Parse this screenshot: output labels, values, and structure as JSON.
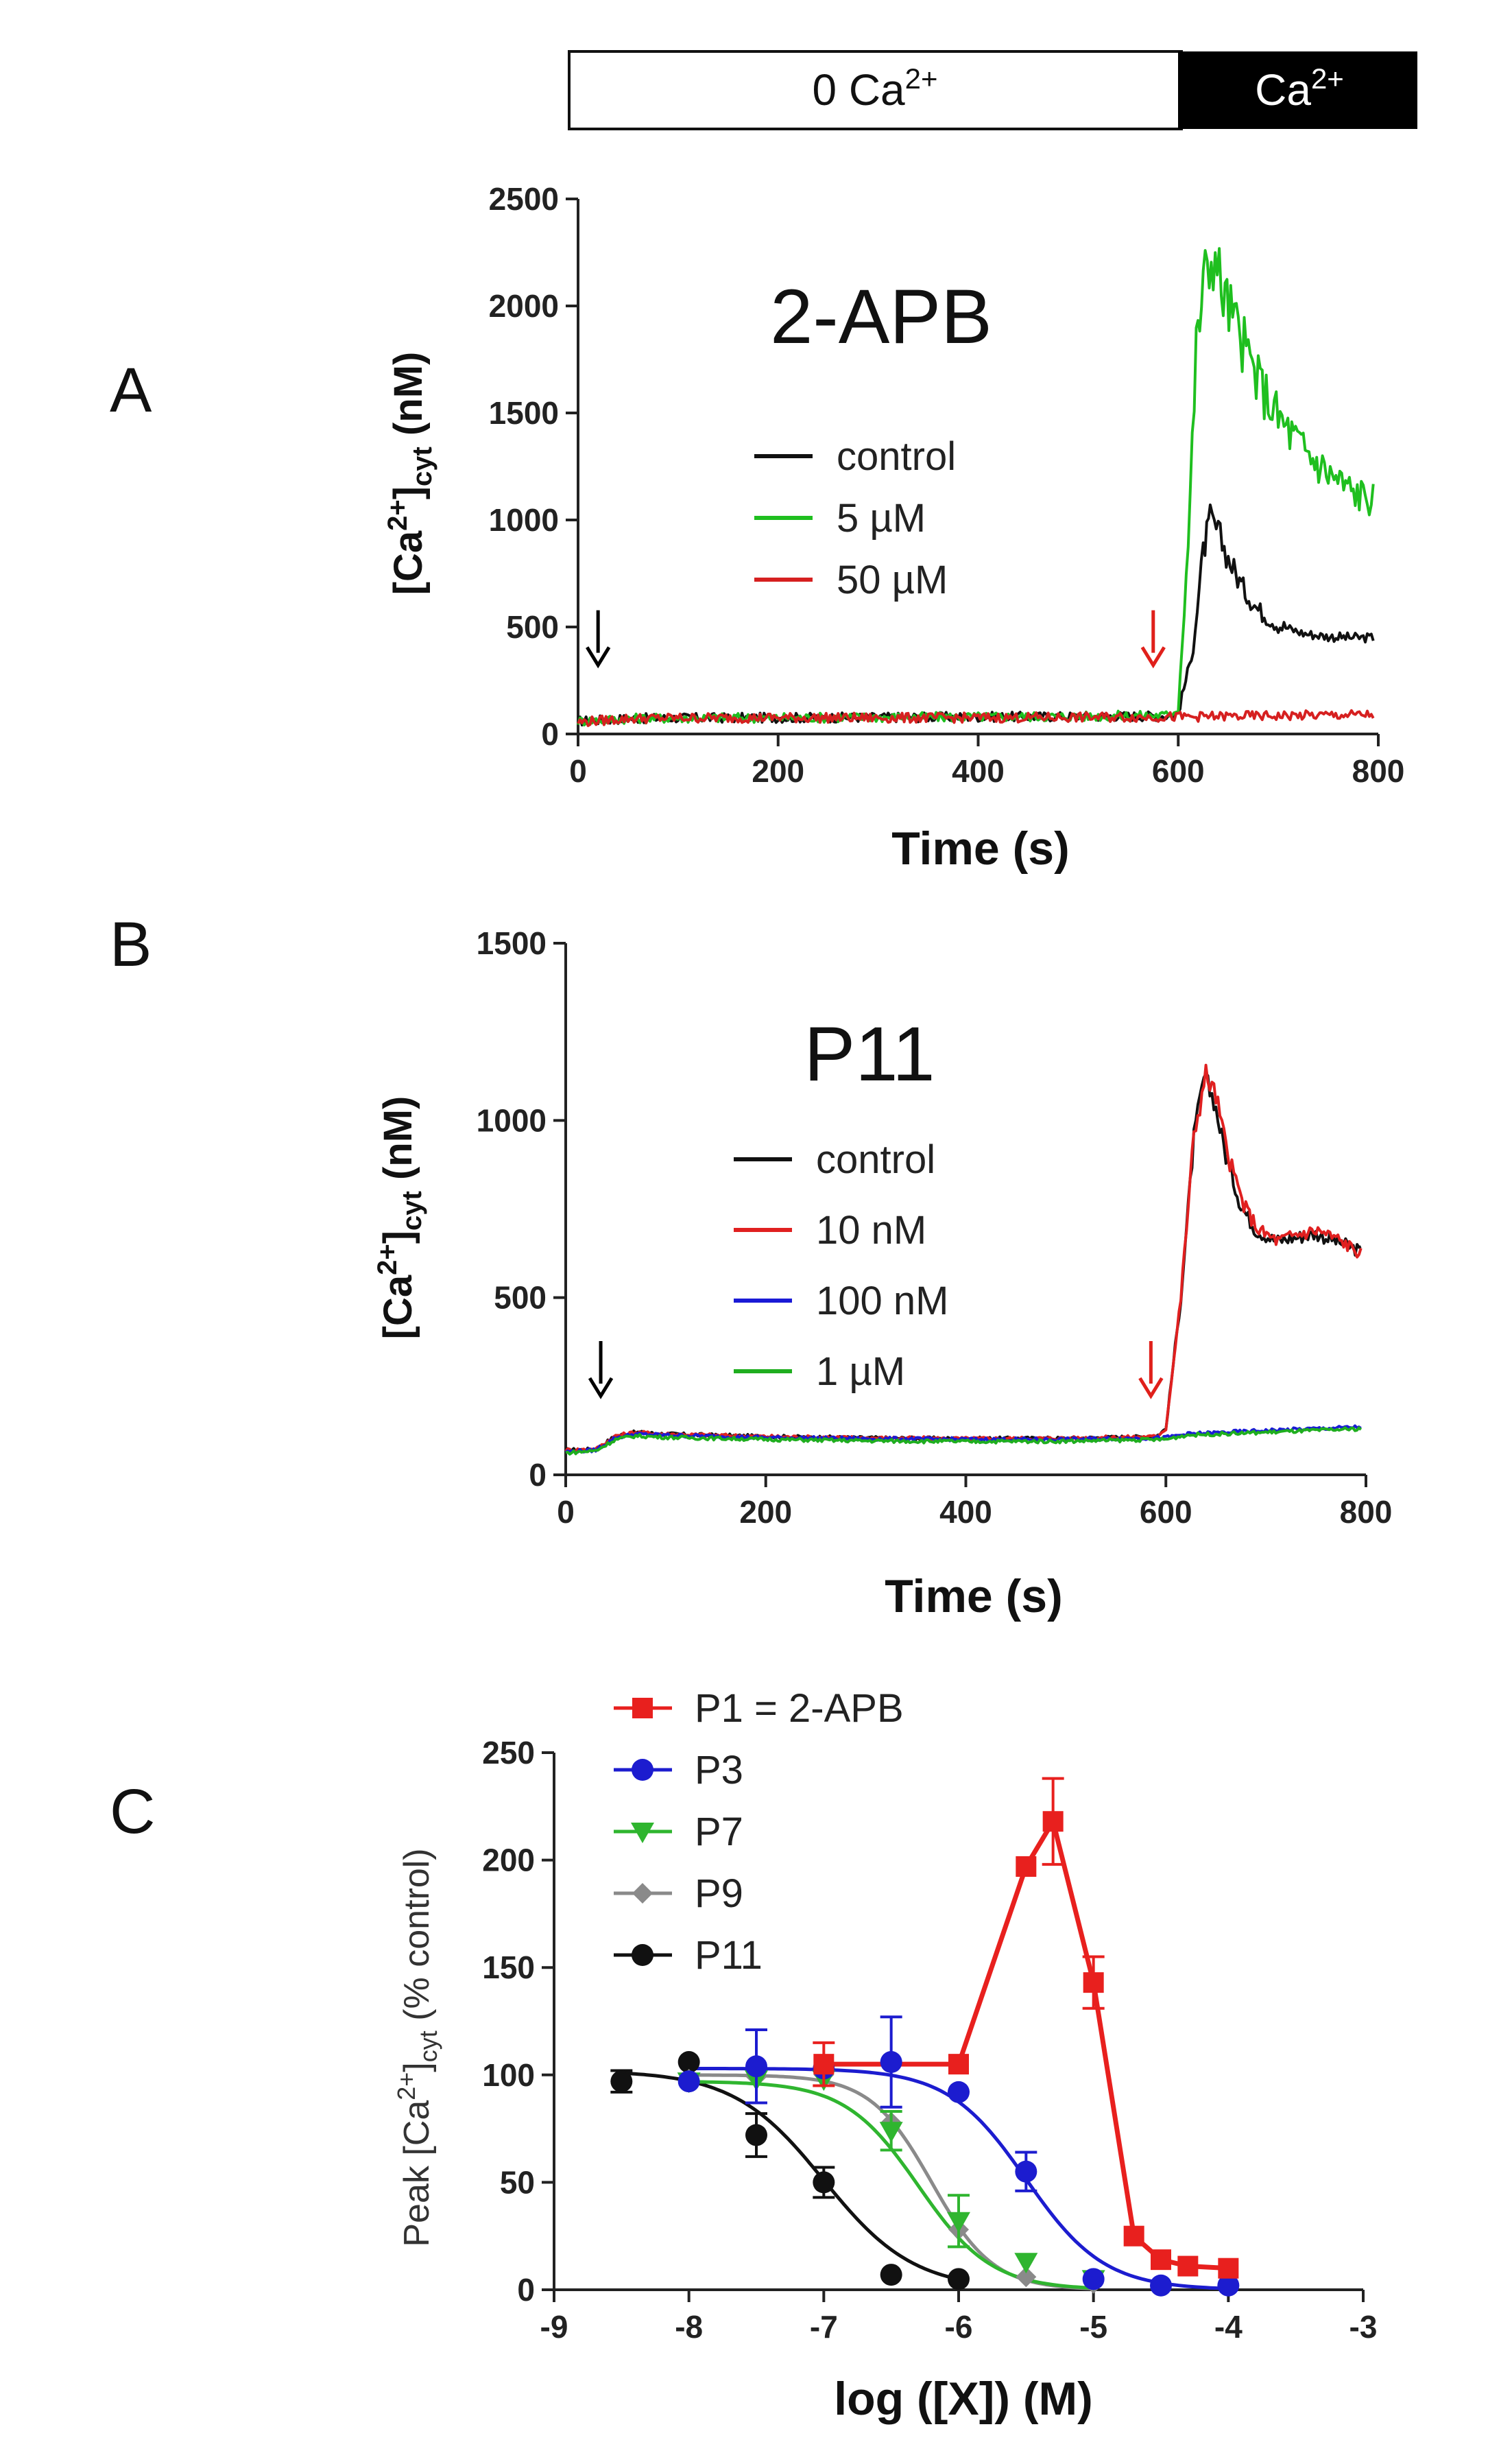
{
  "condition_bar": {
    "left_label": "0 Ca",
    "left_sup": "2+",
    "right_label": "Ca",
    "right_sup": "2+"
  },
  "chart_data": [
    {
      "panel": "A",
      "type": "line",
      "title": "2-APB",
      "xlabel": "Time (s)",
      "ylabel": "[Ca2+]cyt (nM)",
      "ylabel_parts": {
        "main": "[Ca",
        "sup": "2+",
        "close": "]",
        "sub": "cyt",
        "unit": " (nM)"
      },
      "xlim": [
        0,
        800
      ],
      "ylim": [
        0,
        2500
      ],
      "xticks": [
        0,
        200,
        400,
        600,
        800
      ],
      "yticks": [
        0,
        500,
        1000,
        1500,
        2000,
        2500
      ],
      "annotations": [
        {
          "type": "arrow",
          "color": "#000000",
          "x": 20,
          "y": 450
        },
        {
          "type": "arrow",
          "color": "#e0201b",
          "x": 575,
          "y": 450
        }
      ],
      "series": [
        {
          "name": "control",
          "color": "#111111",
          "points": [
            [
              0,
              60
            ],
            [
              50,
              72
            ],
            [
              100,
              75
            ],
            [
              200,
              76
            ],
            [
              300,
              78
            ],
            [
              400,
              80
            ],
            [
              500,
              82
            ],
            [
              590,
              85
            ],
            [
              600,
              100
            ],
            [
              615,
              400
            ],
            [
              625,
              850
            ],
            [
              632,
              1000
            ],
            [
              640,
              940
            ],
            [
              650,
              820
            ],
            [
              665,
              680
            ],
            [
              680,
              580
            ],
            [
              700,
              510
            ],
            [
              725,
              470
            ],
            [
              750,
              455
            ],
            [
              775,
              450
            ],
            [
              795,
              450
            ]
          ]
        },
        {
          "name": "5 µM",
          "color": "#1fbf1f",
          "points": [
            [
              0,
              60
            ],
            [
              50,
              72
            ],
            [
              100,
              75
            ],
            [
              200,
              76
            ],
            [
              300,
              78
            ],
            [
              400,
              80
            ],
            [
              500,
              82
            ],
            [
              590,
              88
            ],
            [
              600,
              120
            ],
            [
              610,
              900
            ],
            [
              618,
              1800
            ],
            [
              625,
              2100
            ],
            [
              635,
              2250
            ],
            [
              645,
              2060
            ],
            [
              660,
              1880
            ],
            [
              680,
              1650
            ],
            [
              700,
              1480
            ],
            [
              725,
              1330
            ],
            [
              750,
              1220
            ],
            [
              775,
              1130
            ],
            [
              795,
              1100
            ]
          ]
        },
        {
          "name": "50 µM",
          "color": "#d62020",
          "points": [
            [
              0,
              55
            ],
            [
              50,
              72
            ],
            [
              100,
              75
            ],
            [
              200,
              76
            ],
            [
              300,
              75
            ],
            [
              400,
              76
            ],
            [
              500,
              78
            ],
            [
              600,
              80
            ],
            [
              700,
              85
            ],
            [
              795,
              90
            ]
          ]
        }
      ]
    },
    {
      "panel": "B",
      "type": "line",
      "title": "P11",
      "xlabel": "Time (s)",
      "ylabel": "[Ca2+]cyt (nM)",
      "ylabel_parts": {
        "main": "[Ca",
        "sup": "2+",
        "close": "]",
        "sub": "cyt",
        "unit": " (nM)"
      },
      "xlim": [
        0,
        800
      ],
      "ylim": [
        0,
        1500
      ],
      "xticks": [
        0,
        200,
        400,
        600,
        800
      ],
      "yticks": [
        0,
        500,
        1000,
        1500
      ],
      "annotations": [
        {
          "type": "arrow",
          "color": "#000000",
          "x": 35,
          "y": 300
        },
        {
          "type": "arrow",
          "color": "#e0201b",
          "x": 585,
          "y": 300
        }
      ],
      "series": [
        {
          "name": "control",
          "color": "#111111",
          "points": [
            [
              0,
              70
            ],
            [
              30,
              72
            ],
            [
              50,
              110
            ],
            [
              70,
              120
            ],
            [
              100,
              115
            ],
            [
              200,
              108
            ],
            [
              300,
              104
            ],
            [
              400,
              102
            ],
            [
              500,
              103
            ],
            [
              590,
              108
            ],
            [
              600,
              130
            ],
            [
              615,
              500
            ],
            [
              628,
              950
            ],
            [
              638,
              1120
            ],
            [
              648,
              1060
            ],
            [
              660,
              900
            ],
            [
              675,
              760
            ],
            [
              690,
              690
            ],
            [
              710,
              660
            ],
            [
              730,
              670
            ],
            [
              750,
              680
            ],
            [
              770,
              660
            ],
            [
              795,
              630
            ]
          ]
        },
        {
          "name": "10 nM",
          "color": "#e02020",
          "points": [
            [
              0,
              70
            ],
            [
              30,
              72
            ],
            [
              50,
              110
            ],
            [
              70,
              120
            ],
            [
              100,
              115
            ],
            [
              200,
              108
            ],
            [
              300,
              104
            ],
            [
              400,
              102
            ],
            [
              500,
              103
            ],
            [
              590,
              108
            ],
            [
              600,
              130
            ],
            [
              615,
              500
            ],
            [
              628,
              960
            ],
            [
              640,
              1130
            ],
            [
              650,
              1070
            ],
            [
              662,
              900
            ],
            [
              678,
              760
            ],
            [
              693,
              690
            ],
            [
              712,
              660
            ],
            [
              732,
              680
            ],
            [
              752,
              690
            ],
            [
              772,
              665
            ],
            [
              795,
              625
            ]
          ]
        },
        {
          "name": "100 nM",
          "color": "#1a1ad6",
          "points": [
            [
              0,
              65
            ],
            [
              30,
              70
            ],
            [
              50,
              105
            ],
            [
              70,
              115
            ],
            [
              100,
              112
            ],
            [
              200,
              105
            ],
            [
              300,
              102
            ],
            [
              400,
              100
            ],
            [
              500,
              100
            ],
            [
              600,
              105
            ],
            [
              620,
              115
            ],
            [
              700,
              125
            ],
            [
              795,
              135
            ]
          ]
        },
        {
          "name": "1 µM",
          "color": "#1fae1f",
          "points": [
            [
              0,
              62
            ],
            [
              30,
              68
            ],
            [
              50,
              100
            ],
            [
              70,
              110
            ],
            [
              100,
              106
            ],
            [
              200,
              100
            ],
            [
              300,
              96
            ],
            [
              400,
              94
            ],
            [
              500,
              95
            ],
            [
              600,
              100
            ],
            [
              620,
              112
            ],
            [
              700,
              120
            ],
            [
              795,
              130
            ]
          ]
        }
      ]
    },
    {
      "panel": "C",
      "type": "scatter",
      "xlabel": "log ([X]) (M)",
      "ylabel": "Peak [Ca2+]cyt (% control)",
      "ylabel_parts": {
        "main": "Peak [Ca",
        "sup": "2+",
        "close": "]",
        "sub": "cyt",
        "unit": " (% control)"
      },
      "xlim": [
        -9,
        -3
      ],
      "ylim": [
        0,
        250
      ],
      "xticks": [
        -9,
        -8,
        -7,
        -6,
        -5,
        -4,
        -3
      ],
      "yticks": [
        0,
        50,
        100,
        150,
        200,
        250
      ],
      "series": [
        {
          "name": "P1 = 2-APB",
          "color": "#e8201e",
          "marker": "square",
          "connect": "straight",
          "x": [
            -7,
            -6,
            -5.5,
            -5.3,
            -5,
            -4.7,
            -4.5,
            -4.3,
            -4
          ],
          "y": [
            105,
            105,
            197,
            218,
            143,
            25,
            14,
            11,
            10
          ],
          "err": [
            10,
            0,
            0,
            20,
            12,
            0,
            0,
            0,
            0
          ]
        },
        {
          "name": "P3",
          "color": "#1c1ccf",
          "marker": "circle",
          "connect": "fit",
          "ic50": -5.5,
          "hill": 1.5,
          "top": 103,
          "x": [
            -8,
            -7.5,
            -7,
            -6.5,
            -6,
            -5.5,
            -5,
            -4.5,
            -4
          ],
          "y": [
            97,
            104,
            103,
            106,
            92,
            55,
            5,
            2,
            2
          ],
          "err": [
            0,
            17,
            0,
            21,
            0,
            9,
            0,
            0,
            0
          ]
        },
        {
          "name": "P7",
          "color": "#2fb52f",
          "marker": "triangle-down",
          "connect": "fit",
          "ic50": -6.3,
          "hill": 1.6,
          "top": 97,
          "x": [
            -8,
            -7.5,
            -7,
            -6.5,
            -6,
            -5.5,
            -5
          ],
          "y": [
            97,
            98,
            98,
            74,
            32,
            13,
            5
          ],
          "err": [
            0,
            0,
            0,
            9,
            12,
            0,
            0
          ]
        },
        {
          "name": "P9",
          "color": "#8a8a8a",
          "marker": "diamond",
          "connect": "fit",
          "ic50": -6.2,
          "hill": 1.9,
          "top": 100,
          "x": [
            -8,
            -7.5,
            -7,
            -6.5,
            -6,
            -5.5,
            -5
          ],
          "y": [
            98,
            99,
            100,
            78,
            28,
            6,
            3
          ],
          "err": [
            0,
            0,
            0,
            0,
            0,
            0,
            0
          ]
        },
        {
          "name": "P11",
          "color": "#111111",
          "marker": "circle",
          "connect": "fit",
          "ic50": -7.0,
          "hill": 1.3,
          "top": 102,
          "x": [
            -8.5,
            -8,
            -7.5,
            -7,
            -6.5,
            -6
          ],
          "y": [
            97,
            106,
            72,
            50,
            7,
            5
          ],
          "err": [
            5,
            0,
            10,
            7,
            0,
            0
          ]
        }
      ]
    }
  ]
}
